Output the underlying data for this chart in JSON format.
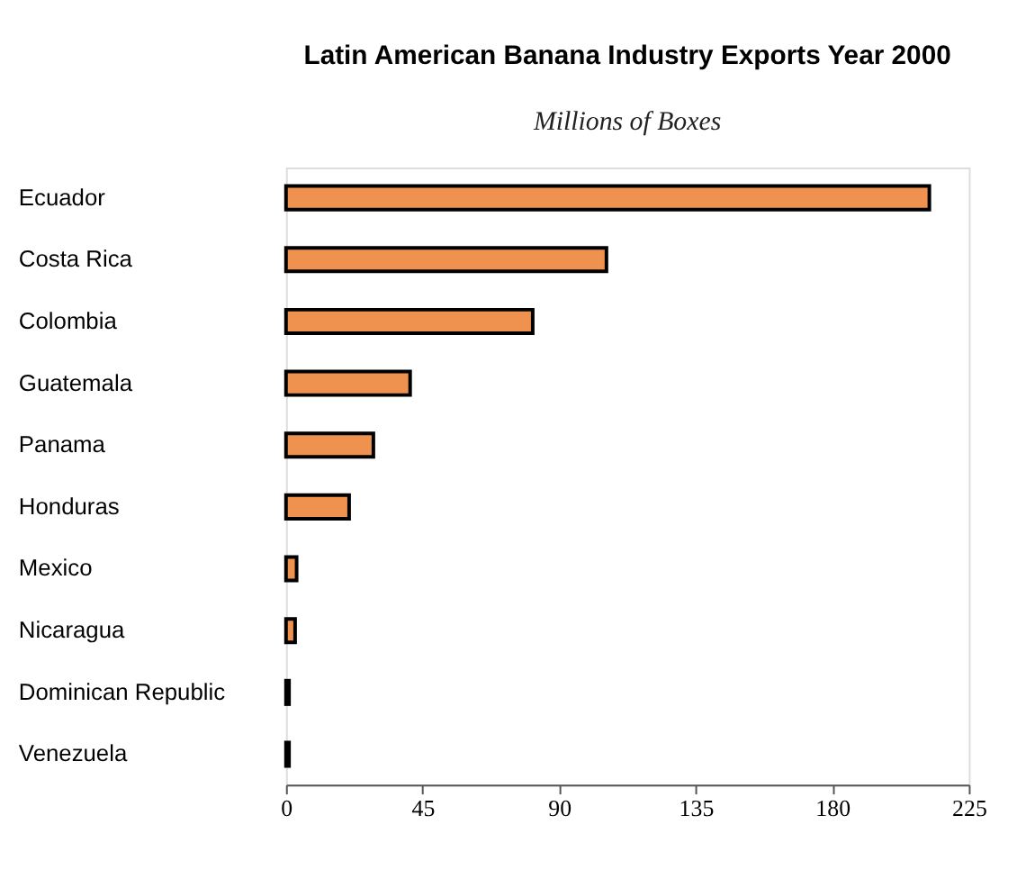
{
  "chart_data": {
    "type": "bar",
    "orientation": "horizontal",
    "title": "Latin American Banana Industry Exports Year 2000",
    "subtitle": "Millions of Boxes",
    "categories": [
      "Ecuador",
      "Costa Rica",
      "Colombia",
      "Guatemala",
      "Panama",
      "Honduras",
      "Mexico",
      "Nicaragua",
      "Dominican Republic",
      "Venezuela"
    ],
    "values": [
      212,
      105.6,
      81.3,
      40.9,
      28.8,
      20.8,
      3.5,
      3,
      1,
      1
    ],
    "color": "#ef914f",
    "xlim": [
      0,
      225
    ],
    "xticks": [
      0,
      45,
      90,
      135,
      180,
      225
    ],
    "grid": false
  }
}
